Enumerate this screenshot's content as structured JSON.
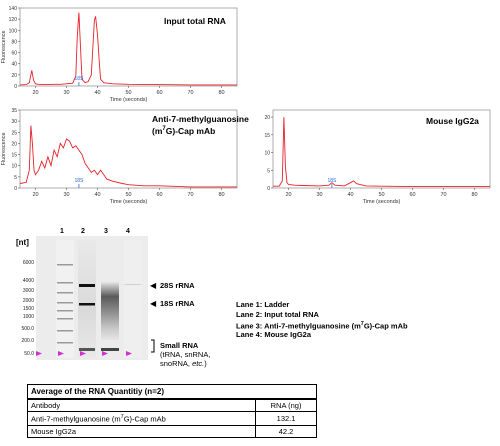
{
  "chart_data": [
    {
      "type": "line",
      "title": "Input total RNA",
      "xlabel": "Time (seconds)",
      "ylabel": "Fluorescence",
      "xlim": [
        15,
        85
      ],
      "ylim": [
        0,
        140
      ],
      "x_ticks": [
        20,
        30,
        40,
        50,
        60,
        70,
        80
      ],
      "y_ticks": [
        0,
        20,
        40,
        60,
        80,
        100,
        120,
        140
      ],
      "marker_label": "18S",
      "marker_x": 34,
      "color": "#e8202a",
      "series": [
        {
          "x": [
            15,
            17,
            18,
            18.8,
            19.4,
            20,
            21,
            22,
            24,
            26,
            28,
            30,
            32,
            33,
            33.5,
            34,
            34.5,
            35,
            36,
            37,
            38,
            38.6,
            39,
            39.4,
            40,
            40.6,
            41,
            42,
            45,
            50,
            60,
            70,
            80,
            85
          ],
          "values": [
            2,
            2.5,
            6,
            28,
            10,
            4,
            3,
            2.5,
            2.5,
            3,
            3,
            4,
            5,
            18,
            90,
            132,
            70,
            12,
            6,
            8,
            20,
            80,
            118,
            125,
            92,
            40,
            12,
            6,
            4,
            3,
            2.5,
            2,
            2,
            2
          ]
        }
      ]
    },
    {
      "type": "line",
      "title": "Anti-7-methylguanosine (m⁷G)-Cap mAb",
      "xlabel": "Time (seconds)",
      "ylabel": "Fluorescence",
      "xlim": [
        15,
        85
      ],
      "ylim": [
        0,
        35
      ],
      "x_ticks": [
        20,
        30,
        40,
        50,
        60,
        70,
        80
      ],
      "y_ticks": [
        0,
        5,
        10,
        15,
        20,
        25,
        30,
        35
      ],
      "marker_label": "18S",
      "marker_x": 34,
      "color": "#e8202a",
      "series": [
        {
          "x": [
            15,
            17,
            18,
            18.5,
            19,
            19.5,
            20,
            21,
            22,
            23,
            24,
            25,
            26,
            27,
            28,
            29,
            30,
            31,
            32,
            33,
            34,
            35,
            36,
            37,
            38,
            39,
            40,
            41,
            42,
            43,
            45,
            48,
            50,
            55,
            60,
            70,
            80,
            85
          ],
          "values": [
            2,
            2.5,
            8,
            28,
            20,
            8,
            6,
            8,
            12,
            9,
            14,
            10,
            17,
            14,
            20,
            18,
            22,
            21,
            18,
            19,
            17,
            15,
            11,
            9,
            7,
            8,
            6,
            8,
            6,
            4,
            3,
            2,
            1.5,
            1,
            1,
            0.5,
            0.5,
            0.5
          ]
        }
      ]
    },
    {
      "type": "line",
      "title": "Mouse IgG2a",
      "xlabel": "Time (seconds)",
      "ylabel": "",
      "xlim": [
        15,
        85
      ],
      "ylim": [
        0,
        22
      ],
      "x_ticks": [
        20,
        30,
        40,
        50,
        60,
        70,
        80
      ],
      "y_ticks": [
        0,
        5,
        10,
        15,
        20
      ],
      "marker_label": "18S",
      "marker_x": 34,
      "color": "#e8202a",
      "series": [
        {
          "x": [
            15,
            17,
            18,
            18.5,
            19,
            19.5,
            20,
            22,
            25,
            30,
            33,
            34,
            35,
            38,
            40,
            41,
            42,
            45,
            50,
            60,
            70,
            80,
            85
          ],
          "values": [
            0.5,
            0.5,
            2,
            20,
            6,
            1.5,
            1,
            0.8,
            0.7,
            0.6,
            0.8,
            1.5,
            0.8,
            0.6,
            1.5,
            2,
            1.2,
            0.6,
            0.5,
            0.4,
            0.4,
            0.4,
            0.4
          ]
        }
      ]
    }
  ],
  "gel": {
    "unit_label": "[nt]",
    "lane_numbers": [
      "1",
      "2",
      "3",
      "4"
    ],
    "ladder_labels": [
      "6000",
      "4000",
      "3000",
      "2000",
      "1500",
      "1000",
      "500.0",
      "200.0",
      "50.0"
    ],
    "bands": {
      "rrna_28s": "28S rRNA",
      "rrna_18s": "18S rRNA"
    },
    "small_rna": {
      "title": "Small RNA",
      "line1": "(tRNA, snRNA,",
      "line2": "snoRNA,",
      "etc": "etc.",
      "close": ")"
    }
  },
  "lanes": {
    "lane1": "Lane 1: Ladder",
    "lane2": "Lane 2: Input total RNA",
    "lane3_a": "Lane 3: Anti-7-methylguanosine (m",
    "lane3_sup": "7",
    "lane3_b": "G)-Cap mAb",
    "lane4": "Lane 4: Mouse IgG2a"
  },
  "table": {
    "caption": "Average of the RNA Quantitiy (n=2)",
    "col_antibody": "Antibody",
    "col_rna": "RNA (ng)",
    "row1_a": "Anti-7-methylguanosine (m",
    "row1_sup": "7",
    "row1_b": "G)-Cap mAb",
    "row1_value": "132.1",
    "row2_name": "Mouse IgG2a",
    "row2_value": "42.2"
  },
  "titles": {
    "panel1": "Input total RNA",
    "panel2_line1": "Anti-7-methylguanosine",
    "panel2_line2a": "(m",
    "panel2_sup": "7",
    "panel2_line2b": "G)-Cap mAb",
    "panel3": "Mouse IgG2a"
  }
}
